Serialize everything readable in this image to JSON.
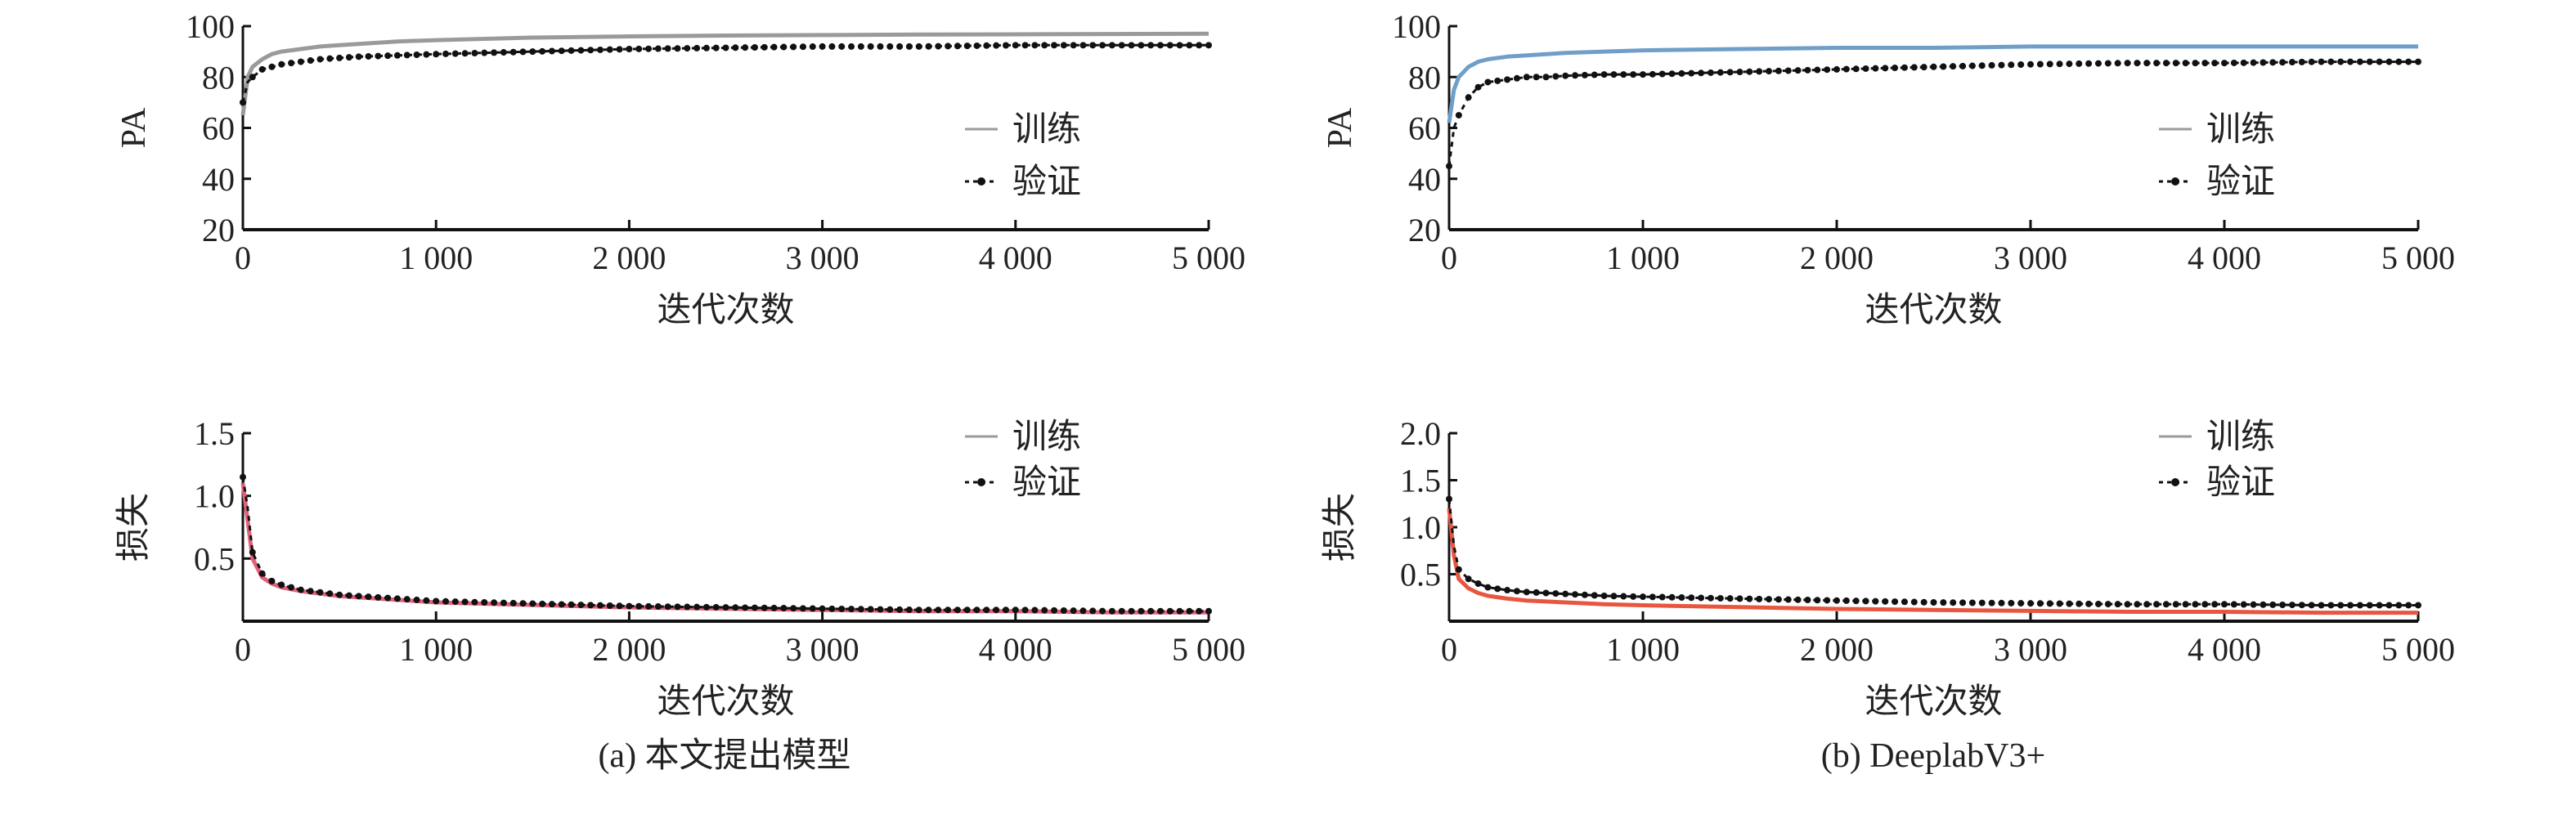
{
  "chart_data": [
    {
      "id": "a-pa",
      "type": "line",
      "panel": "(a) 本文提出模型",
      "xlabel": "迭代次数",
      "ylabel": "PA",
      "xlim": [
        0,
        5000
      ],
      "ylim": [
        20,
        100
      ],
      "xticks": [
        0,
        1000,
        2000,
        3000,
        4000,
        5000
      ],
      "xtick_labels": [
        "0",
        "1 000",
        "2 000",
        "3 000",
        "4 000",
        "5 000"
      ],
      "yticks": [
        20,
        40,
        60,
        80,
        100
      ],
      "ytick_labels": [
        "20",
        "40",
        "60",
        "80",
        "100"
      ],
      "legend_placement": "right",
      "x": [
        0,
        25,
        50,
        100,
        150,
        200,
        300,
        400,
        500,
        600,
        800,
        1000,
        1500,
        2000,
        2500,
        3000,
        3500,
        4000,
        4500,
        5000
      ],
      "series": [
        {
          "name": "训练",
          "color": "#9a9a9a",
          "style": "line",
          "values": [
            65,
            80,
            84,
            87,
            89,
            90,
            91,
            92,
            92.5,
            93,
            94,
            94.5,
            95.5,
            96,
            96.3,
            96.5,
            96.7,
            96.8,
            96.9,
            97
          ]
        },
        {
          "name": "验证",
          "color": "#111111",
          "style": "dotted-marker",
          "values": [
            70,
            78,
            80,
            83,
            84,
            85,
            86,
            87,
            87.5,
            88,
            88.5,
            89,
            90,
            91,
            91.5,
            92,
            92,
            92.5,
            92.5,
            92.5
          ]
        }
      ]
    },
    {
      "id": "b-pa",
      "type": "line",
      "panel": "(b) DeeplabV3+",
      "xlabel": "迭代次数",
      "ylabel": "PA",
      "xlim": [
        0,
        5000
      ],
      "ylim": [
        20,
        100
      ],
      "xticks": [
        0,
        1000,
        2000,
        3000,
        4000,
        5000
      ],
      "xtick_labels": [
        "0",
        "1 000",
        "2 000",
        "3 000",
        "4 000",
        "5 000"
      ],
      "yticks": [
        20,
        40,
        60,
        80,
        100
      ],
      "ytick_labels": [
        "20",
        "40",
        "60",
        "80",
        "100"
      ],
      "legend_placement": "right",
      "x": [
        0,
        25,
        50,
        100,
        150,
        200,
        300,
        400,
        500,
        600,
        800,
        1000,
        1500,
        2000,
        2500,
        3000,
        3500,
        4000,
        4500,
        5000
      ],
      "series": [
        {
          "name": "训练",
          "color": "#6f9fc8",
          "style": "line",
          "values": [
            62,
            75,
            80,
            84,
            86,
            87,
            88,
            88.5,
            89,
            89.5,
            90,
            90.5,
            91,
            91.5,
            91.5,
            92,
            92,
            92,
            92,
            92
          ]
        },
        {
          "name": "验证",
          "color": "#111111",
          "style": "dotted-marker",
          "values": [
            45,
            60,
            65,
            72,
            76,
            78,
            79,
            80,
            80,
            80.5,
            81,
            81,
            82,
            83,
            84,
            85,
            85.5,
            85.5,
            86,
            86
          ]
        }
      ]
    },
    {
      "id": "a-loss",
      "type": "line",
      "panel": "(a) 本文提出模型",
      "xlabel": "迭代次数",
      "ylabel": "损失",
      "xlim": [
        0,
        5000
      ],
      "ylim": [
        0,
        1.5
      ],
      "xticks": [
        0,
        1000,
        2000,
        3000,
        4000,
        5000
      ],
      "xtick_labels": [
        "0",
        "1 000",
        "2 000",
        "3 000",
        "4 000",
        "5 000"
      ],
      "yticks": [
        0.5,
        1.0,
        1.5
      ],
      "ytick_labels": [
        "0.5",
        "1.0",
        "1.5"
      ],
      "legend_placement": "top-right",
      "x": [
        0,
        25,
        50,
        100,
        150,
        200,
        300,
        400,
        500,
        600,
        800,
        1000,
        1500,
        2000,
        2500,
        3000,
        3500,
        4000,
        4500,
        5000
      ],
      "series": [
        {
          "name": "训练",
          "color": "#e2607a",
          "style": "line",
          "values": [
            1.1,
            0.8,
            0.5,
            0.35,
            0.3,
            0.27,
            0.24,
            0.22,
            0.2,
            0.19,
            0.17,
            0.15,
            0.13,
            0.11,
            0.1,
            0.09,
            0.08,
            0.08,
            0.07,
            0.07
          ]
        },
        {
          "name": "验证",
          "color": "#111111",
          "style": "dotted-marker",
          "values": [
            1.15,
            0.9,
            0.55,
            0.38,
            0.32,
            0.29,
            0.25,
            0.23,
            0.21,
            0.2,
            0.18,
            0.16,
            0.14,
            0.12,
            0.11,
            0.1,
            0.09,
            0.09,
            0.08,
            0.08
          ]
        }
      ]
    },
    {
      "id": "b-loss",
      "type": "line",
      "panel": "(b) DeeplabV3+",
      "xlabel": "迭代次数",
      "ylabel": "损失",
      "xlim": [
        0,
        5000
      ],
      "ylim": [
        0,
        2.0
      ],
      "xticks": [
        0,
        1000,
        2000,
        3000,
        4000,
        5000
      ],
      "xtick_labels": [
        "0",
        "1 000",
        "2 000",
        "3 000",
        "4 000",
        "5 000"
      ],
      "yticks": [
        0.5,
        1.0,
        1.5,
        2.0
      ],
      "ytick_labels": [
        "0.5",
        "1.0",
        "1.5",
        "2.0"
      ],
      "legend_placement": "top-right",
      "x": [
        0,
        25,
        50,
        100,
        150,
        200,
        300,
        400,
        500,
        600,
        800,
        1000,
        1500,
        2000,
        2500,
        3000,
        3500,
        4000,
        4500,
        5000
      ],
      "series": [
        {
          "name": "训练",
          "color": "#e8563f",
          "style": "line",
          "values": [
            1.2,
            0.7,
            0.45,
            0.35,
            0.3,
            0.27,
            0.24,
            0.22,
            0.21,
            0.2,
            0.18,
            0.17,
            0.15,
            0.13,
            0.12,
            0.11,
            0.1,
            0.1,
            0.09,
            0.09
          ]
        },
        {
          "name": "验证",
          "color": "#111111",
          "style": "dotted-marker",
          "values": [
            1.3,
            0.8,
            0.55,
            0.45,
            0.4,
            0.36,
            0.33,
            0.31,
            0.3,
            0.29,
            0.27,
            0.26,
            0.24,
            0.22,
            0.2,
            0.19,
            0.18,
            0.18,
            0.17,
            0.17
          ]
        }
      ]
    }
  ],
  "captions": {
    "a": "(a) 本文提出模型",
    "b": "(b) DeeplabV3+"
  }
}
